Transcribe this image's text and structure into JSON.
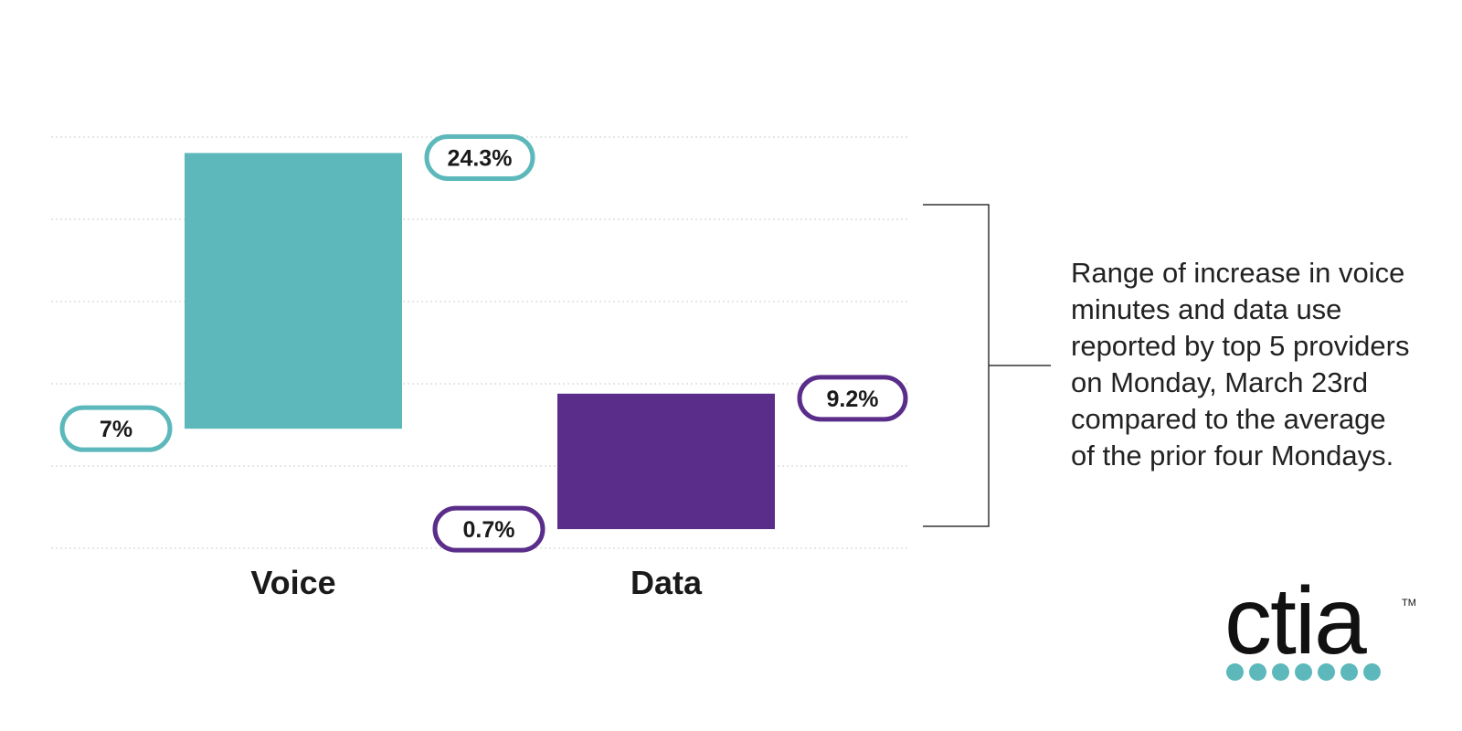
{
  "chart_data": {
    "type": "bar",
    "subtype": "floating-range",
    "categories": [
      "Voice",
      "Data"
    ],
    "series": [
      {
        "low": 7,
        "high": 24.3,
        "low_label": "7%",
        "high_label": "24.3%",
        "color": "#5cb8ba"
      },
      {
        "low": 0.7,
        "high": 9.2,
        "low_label": "0.7%",
        "high_label": "9.2%",
        "color": "#5a2d8a"
      }
    ],
    "ylim": [
      -0.5,
      25.3
    ],
    "grid": true,
    "gridline_count": 6
  },
  "annotation": {
    "lines": [
      "Range of increase in voice",
      "minutes and data use",
      "reported by top 5 providers",
      "on Monday, March 23rd",
      "compared to the average",
      "of the prior four Mondays."
    ]
  },
  "logo": {
    "text": "ctia",
    "tm": "TM",
    "dot_count": 7,
    "dot_color": "#5cb8ba"
  },
  "colors": {
    "grid": "#d7d7d7",
    "bracket": "#333333",
    "text": "#222222"
  }
}
